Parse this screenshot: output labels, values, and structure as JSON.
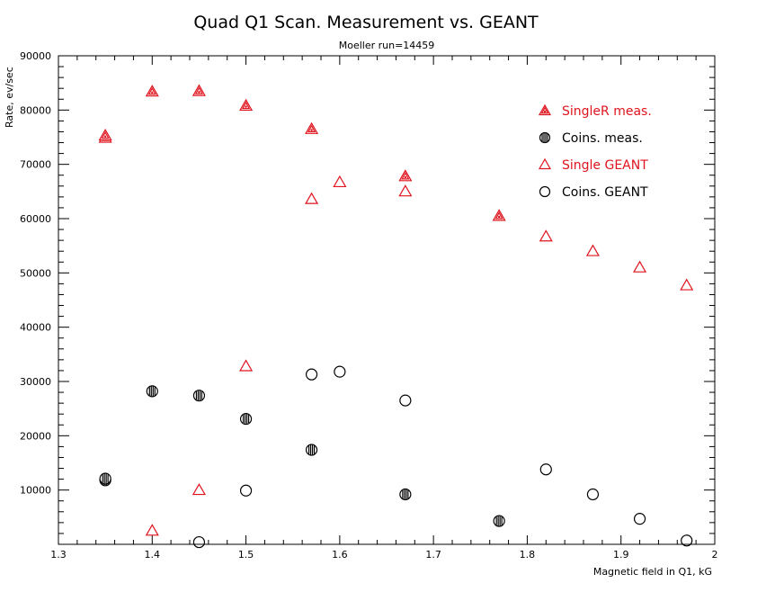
{
  "chart_data": {
    "type": "scatter",
    "title": "Quad Q1 Scan. Measurement vs. GEANT",
    "subtitle": "Moeller run=14459",
    "xlabel": "Magnetic field in Q1, kG",
    "ylabel": "Rate, ev/sec",
    "xlim": [
      1.3,
      2.0
    ],
    "ylim": [
      0,
      90000
    ],
    "x_ticks": [
      "1.3",
      "1.4",
      "1.5",
      "1.6",
      "1.7",
      "1.8",
      "1.9",
      "2"
    ],
    "y_ticks": [
      "10000",
      "20000",
      "30000",
      "40000",
      "50000",
      "60000",
      "70000",
      "80000",
      "90000"
    ],
    "legend_position": "top-right",
    "series": [
      {
        "name": "SingleR meas.",
        "marker": "filled-triangle",
        "color": "#e0141e",
        "x": [
          1.35,
          1.35,
          1.4,
          1.45,
          1.5,
          1.57,
          1.67,
          1.77
        ],
        "y": [
          74900,
          75300,
          83400,
          83500,
          80800,
          76500,
          67800,
          60500
        ]
      },
      {
        "name": "Coins. meas.",
        "marker": "filled-circle",
        "color": "#000000",
        "x": [
          1.35,
          1.35,
          1.4,
          1.45,
          1.5,
          1.57,
          1.67,
          1.77
        ],
        "y": [
          11800,
          12100,
          28200,
          27400,
          23100,
          17400,
          9200,
          4300
        ]
      },
      {
        "name": "Single GEANT",
        "marker": "open-triangle",
        "color": "#e0141e",
        "x": [
          1.4,
          1.45,
          1.5,
          1.57,
          1.6,
          1.67,
          1.82,
          1.87,
          1.92,
          1.97
        ],
        "y": [
          2500,
          10000,
          32800,
          63600,
          66700,
          65000,
          56700,
          54000,
          51000,
          47700
        ]
      },
      {
        "name": "Coins. GEANT",
        "marker": "open-circle",
        "color": "#000000",
        "x": [
          1.45,
          1.5,
          1.57,
          1.6,
          1.67,
          1.82,
          1.87,
          1.92,
          1.97
        ],
        "y": [
          400,
          9900,
          31300,
          31800,
          26500,
          13800,
          9200,
          4700,
          700
        ]
      }
    ]
  }
}
